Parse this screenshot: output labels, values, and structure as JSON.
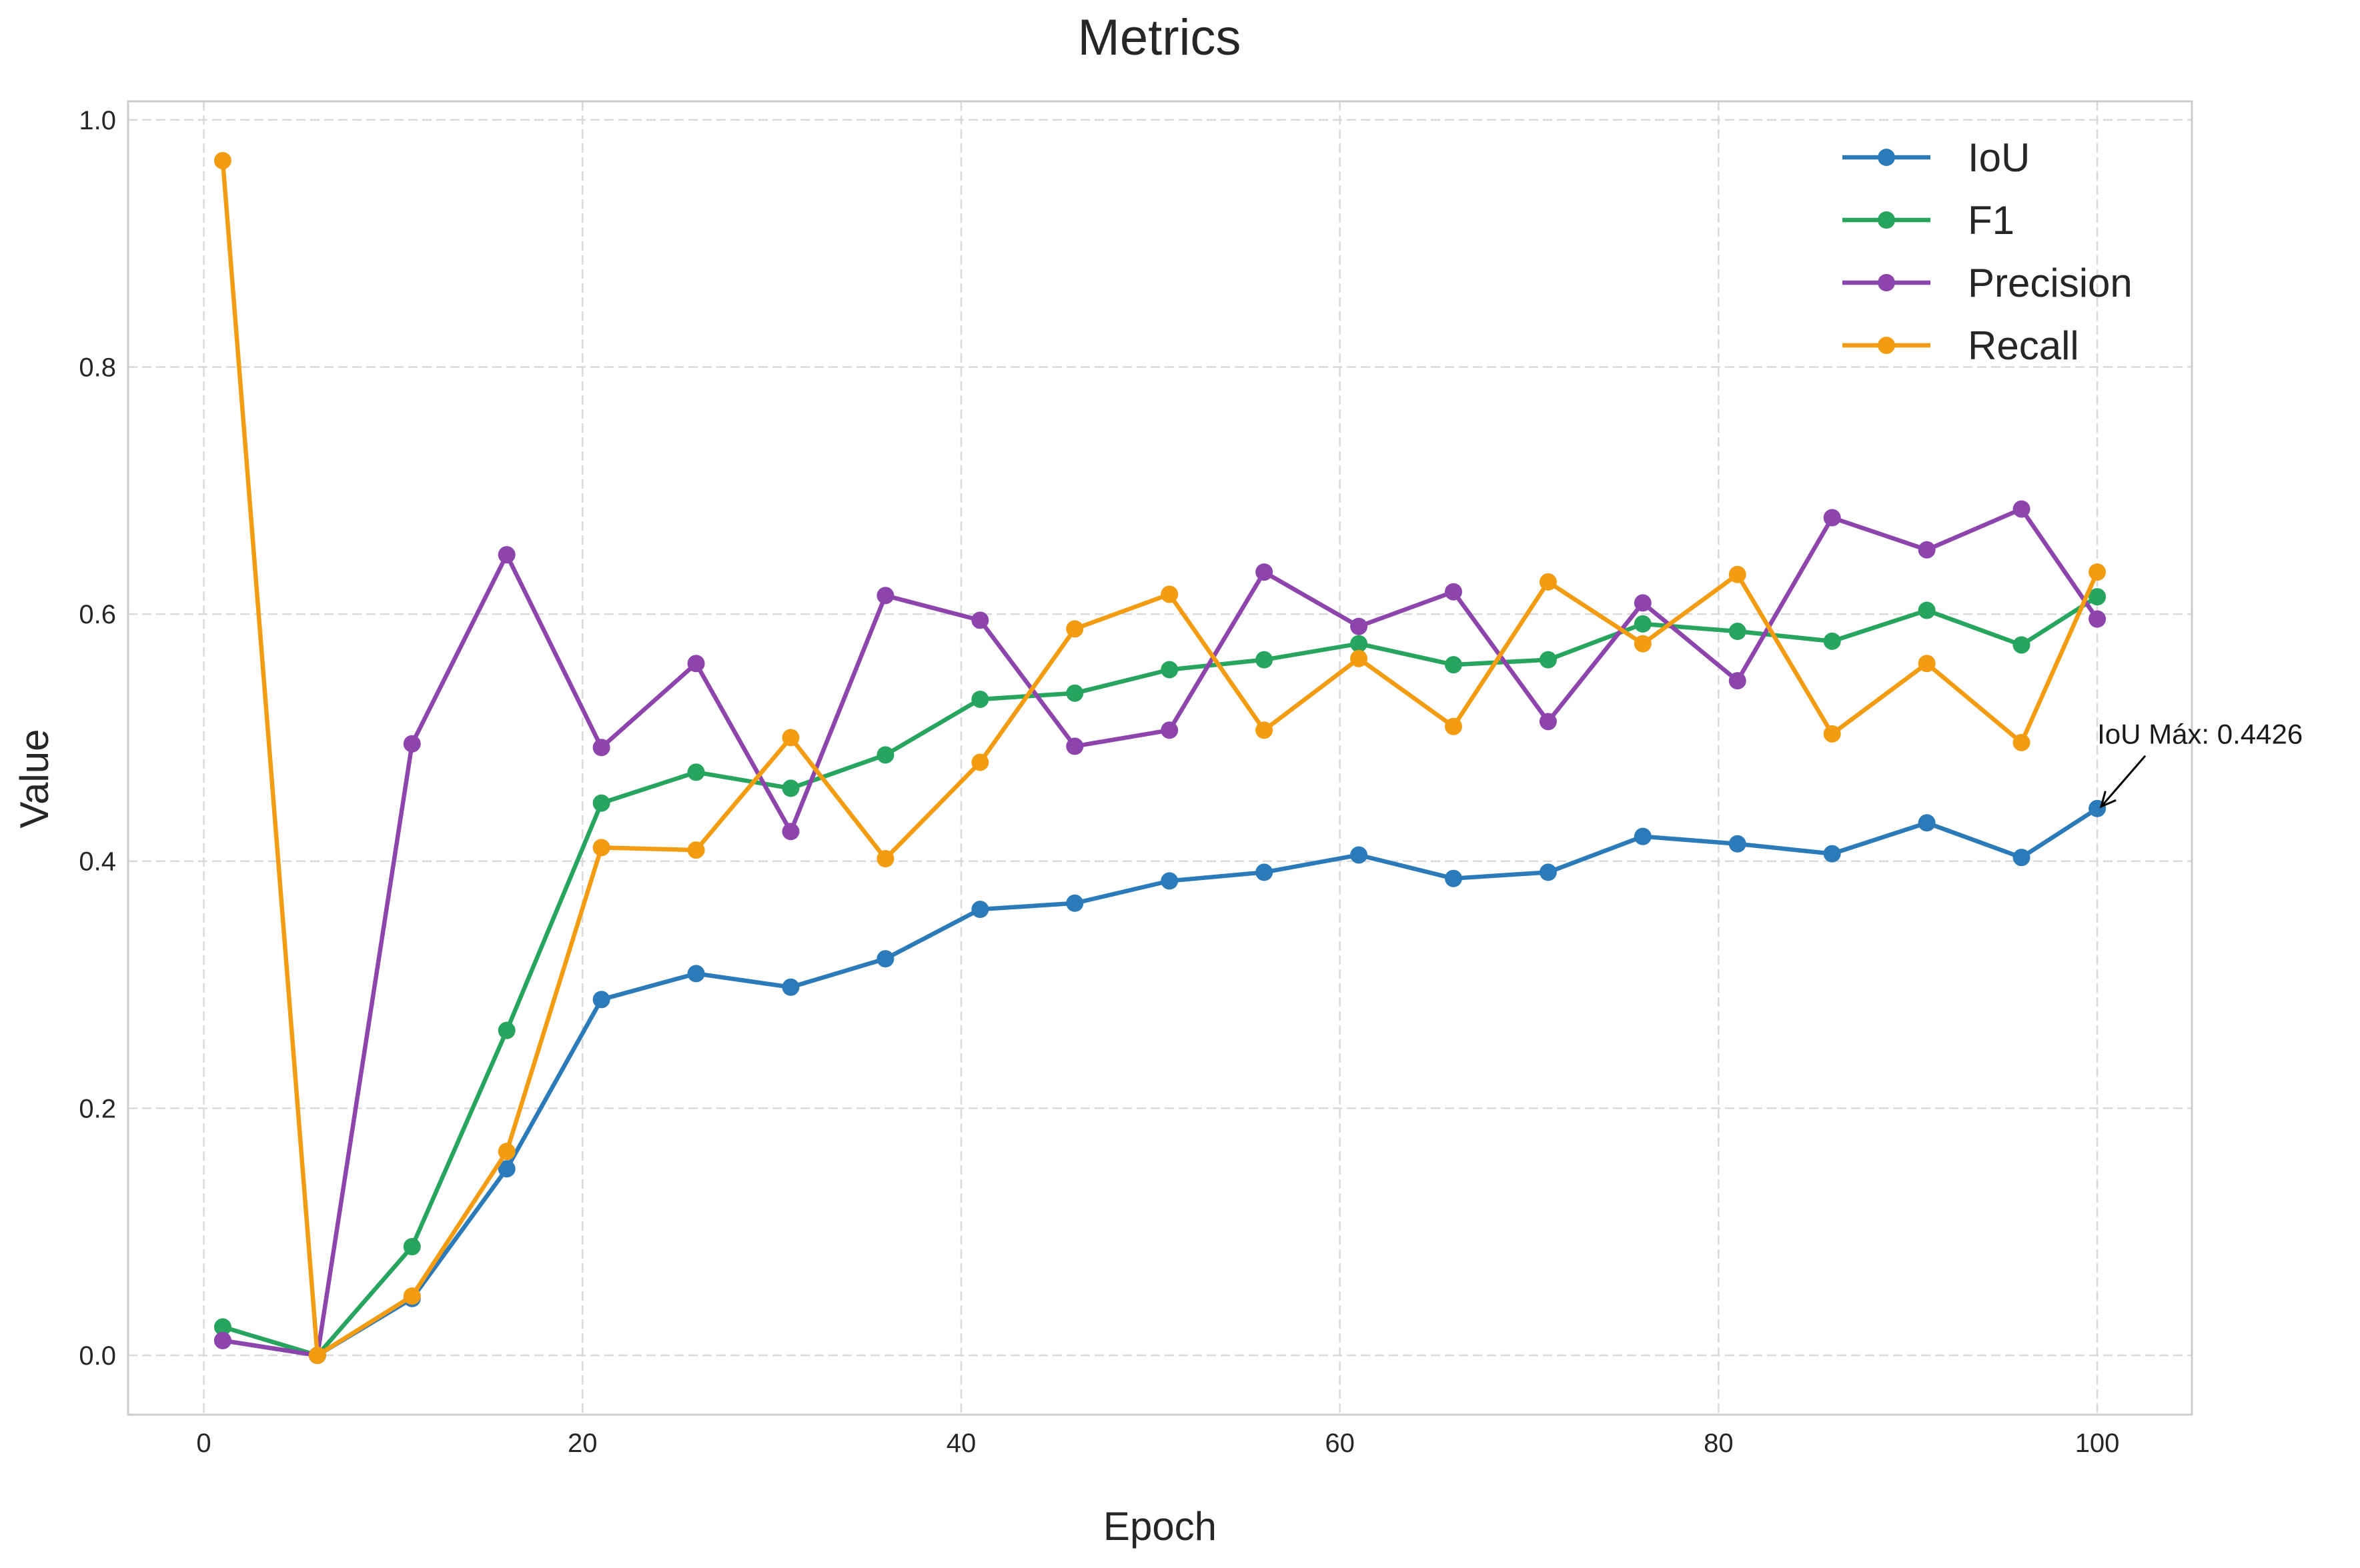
{
  "chart_data": {
    "type": "line",
    "title": "Metrics",
    "xlabel": "Epoch",
    "ylabel": "Value",
    "xlim": [
      -4,
      105
    ],
    "ylim": [
      -0.048,
      1.015
    ],
    "xticks": [
      0,
      20,
      40,
      60,
      80,
      100
    ],
    "yticks": [
      0.0,
      0.2,
      0.4,
      0.6,
      0.8,
      1.0
    ],
    "xtick_labels": [
      "0",
      "20",
      "40",
      "60",
      "80",
      "100"
    ],
    "ytick_labels": [
      "0.0",
      "0.2",
      "0.4",
      "0.6",
      "0.8",
      "1.0"
    ],
    "grid": true,
    "legend_position": "top-right",
    "x": [
      1,
      6,
      11,
      16,
      21,
      26,
      31,
      36,
      41,
      46,
      51,
      56,
      61,
      66,
      71,
      76,
      81,
      86,
      91,
      96,
      100
    ],
    "series": [
      {
        "name": "IoU",
        "color": "#2b7bba",
        "values": [
          0.012,
          0.0,
          0.046,
          0.151,
          0.288,
          0.309,
          0.298,
          0.321,
          0.361,
          0.366,
          0.384,
          0.391,
          0.405,
          0.386,
          0.391,
          0.42,
          0.414,
          0.406,
          0.431,
          0.403,
          0.4426
        ]
      },
      {
        "name": "F1",
        "color": "#27a55f",
        "values": [
          0.023,
          0.0,
          0.088,
          0.263,
          0.447,
          0.472,
          0.459,
          0.486,
          0.531,
          0.536,
          0.555,
          0.563,
          0.576,
          0.559,
          0.563,
          0.592,
          0.586,
          0.578,
          0.603,
          0.575,
          0.614
        ]
      },
      {
        "name": "Precision",
        "color": "#8e44ad",
        "values": [
          0.012,
          0.0,
          0.495,
          0.648,
          0.492,
          0.56,
          0.424,
          0.615,
          0.595,
          0.493,
          0.506,
          0.634,
          0.59,
          0.618,
          0.513,
          0.609,
          0.546,
          0.678,
          0.652,
          0.685,
          0.596
        ]
      },
      {
        "name": "Recall",
        "color": "#f39c12",
        "values": [
          0.967,
          0.0,
          0.048,
          0.165,
          0.411,
          0.409,
          0.5,
          0.402,
          0.48,
          0.588,
          0.616,
          0.506,
          0.564,
          0.509,
          0.626,
          0.576,
          0.632,
          0.503,
          0.56,
          0.496,
          0.634
        ]
      }
    ],
    "annotations": [
      {
        "text": "IoU Máx: 0.4426",
        "x": 100,
        "y": 0.4426,
        "text_x": 100,
        "text_y": 0.495
      }
    ]
  }
}
